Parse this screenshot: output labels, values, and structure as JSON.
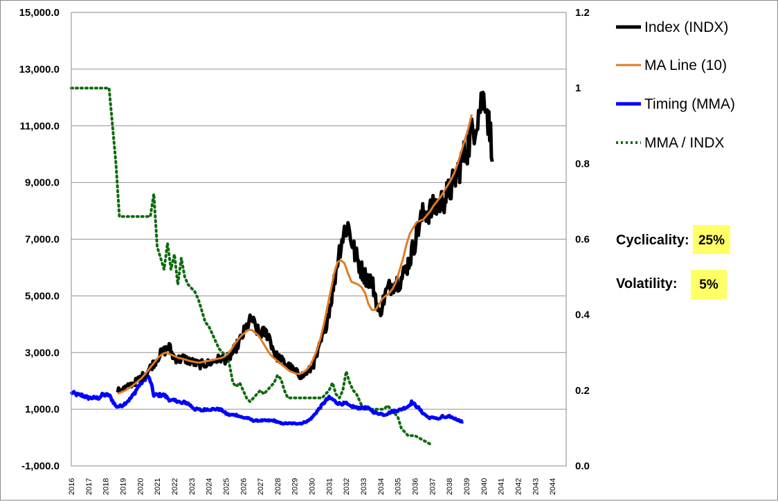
{
  "chart_data": {
    "type": "line",
    "x_axis": {
      "tick_labels": [
        "2016",
        "2017",
        "2018",
        "2019",
        "2020",
        "2021",
        "2022",
        "2023",
        "2024",
        "2025",
        "2026",
        "2027",
        "2028",
        "2029",
        "2030",
        "2031",
        "2032",
        "2033",
        "2034",
        "2035",
        "2036",
        "2037",
        "2038",
        "2039",
        "2040",
        "2041",
        "2042",
        "2043",
        "2044"
      ],
      "range": [
        2016,
        2044.8
      ]
    },
    "y_axis_left": {
      "range": [
        -1000,
        15000
      ],
      "tick_labels": [
        "-1,000.0",
        "1,000.0",
        "3,000.0",
        "5,000.0",
        "7,000.0",
        "9,000.0",
        "11,000.0",
        "13,000.0",
        "15,000.0"
      ],
      "gridlines": true
    },
    "y_axis_right": {
      "range": [
        0,
        1.2
      ],
      "tick_labels": [
        "0.0",
        "0.2",
        "0.4",
        "0.6",
        "0.8",
        "1",
        "1.2"
      ]
    },
    "legend": {
      "placement": "top-right",
      "entries": [
        {
          "label": "Index (INDX)",
          "color": "#000000",
          "style": "solid-thick"
        },
        {
          "label": "MA Line (10)",
          "color": "#E07B24",
          "style": "solid"
        },
        {
          "label": "Timing (MMA)",
          "color": "#0000FF",
          "style": "solid-thick"
        },
        {
          "label": "MMA / INDX",
          "color": "#0E6B0E",
          "style": "dotted"
        }
      ]
    },
    "series": [
      {
        "name": "Index (INDX)",
        "axis": "left",
        "color": "#000000",
        "width": 5,
        "start": 2018.7,
        "step": 0.2,
        "noise": 0.06,
        "noise_min": 80,
        "values": [
          1650,
          1700,
          1750,
          1800,
          1880,
          1950,
          2050,
          2150,
          2250,
          2400,
          2550,
          2700,
          2900,
          3000,
          3100,
          3200,
          2900,
          2800,
          2750,
          2800,
          2750,
          2700,
          2650,
          2600,
          2580,
          2600,
          2600,
          2650,
          2700,
          2750,
          2800,
          2750,
          2800,
          2900,
          3100,
          3300,
          3500,
          3800,
          4000,
          4200,
          3900,
          3700,
          3700,
          3700,
          3600,
          3200,
          2900,
          2800,
          2700,
          2600,
          2500,
          2400,
          2300,
          2200,
          2200,
          2300,
          2400,
          2600,
          2900,
          3300,
          3700,
          4200,
          4800,
          5500,
          6300,
          6900,
          7300,
          7500,
          7000,
          6500,
          6200,
          5900,
          5700,
          5600,
          5500,
          5000,
          4300,
          4700,
          5100,
          5300,
          5400,
          5500,
          5500,
          5700,
          6000,
          6300,
          6700,
          7200,
          7600,
          7900,
          8000,
          8000,
          8100,
          8200,
          8300,
          8400,
          8600,
          8800,
          9100,
          9400,
          9700,
          10000,
          10300,
          10700,
          11100,
          11500,
          11900,
          12100,
          11000,
          10300
        ]
      },
      {
        "name": "MA Line (10)",
        "axis": "left",
        "color": "#E07B24",
        "width": 3,
        "start": 2018.7,
        "step": 0.2,
        "values": [
          1550,
          1600,
          1650,
          1720,
          1800,
          1900,
          2000,
          2100,
          2250,
          2400,
          2550,
          2700,
          2850,
          2950,
          3000,
          2950,
          2900,
          2850,
          2800,
          2780,
          2740,
          2700,
          2680,
          2650,
          2650,
          2680,
          2700,
          2720,
          2750,
          2780,
          2800,
          2850,
          2950,
          3100,
          3300,
          3450,
          3600,
          3700,
          3800,
          3800,
          3700,
          3600,
          3400,
          3200,
          3000,
          2850,
          2750,
          2650,
          2550,
          2450,
          2350,
          2300,
          2250,
          2250,
          2300,
          2400,
          2550,
          2800,
          3100,
          3500,
          4000,
          4600,
          5200,
          5800,
          6200,
          6250,
          6150,
          5800,
          5500,
          5450,
          5400,
          5300,
          5100,
          4700,
          4500,
          4500,
          4700,
          4900,
          5000,
          5100,
          5250,
          5500,
          5900,
          6300,
          6800,
          7200,
          7400,
          7600,
          7650,
          7700,
          7850,
          8000,
          8200,
          8350,
          8500,
          8700,
          8900,
          9100,
          9350,
          9700,
          10100,
          10500,
          10900,
          11400
        ]
      },
      {
        "name": "Timing (MMA)",
        "axis": "left",
        "color": "#0000FF",
        "width": 5,
        "start": 2016,
        "step": 0.2,
        "noise": 0.04,
        "noise_min": 20,
        "values": [
          1600,
          1550,
          1500,
          1500,
          1450,
          1400,
          1400,
          1400,
          1400,
          1500,
          1500,
          1500,
          1300,
          1100,
          1100,
          1150,
          1250,
          1350,
          1500,
          1700,
          1900,
          2000,
          2200,
          2000,
          1500,
          1500,
          1500,
          1500,
          1400,
          1300,
          1300,
          1300,
          1200,
          1250,
          1200,
          1100,
          1000,
          1000,
          950,
          1000,
          1000,
          1000,
          1000,
          1000,
          950,
          850,
          800,
          800,
          800,
          750,
          700,
          700,
          650,
          600,
          600,
          600,
          600,
          600,
          600,
          600,
          550,
          500,
          500,
          500,
          500,
          500,
          500,
          500,
          550,
          600,
          700,
          850,
          1000,
          1150,
          1300,
          1400,
          1350,
          1250,
          1200,
          1200,
          1200,
          1100,
          1100,
          1050,
          1050,
          1050,
          1050,
          1000,
          900,
          850,
          850,
          800,
          850,
          900,
          950,
          950,
          1000,
          1050,
          1100,
          1250,
          1150,
          1050,
          900,
          800,
          700,
          700,
          700,
          650,
          750,
          700,
          750,
          700,
          650,
          600,
          550
        ]
      },
      {
        "name": "MMA / INDX",
        "axis": "right",
        "color": "#0E6B0E",
        "width": 4,
        "dotted": true,
        "start": 2016,
        "step": 0.2,
        "values": [
          1,
          1,
          1,
          1,
          1,
          1,
          1,
          1,
          1,
          1,
          1,
          1,
          0.9,
          0.8,
          0.66,
          0.66,
          0.66,
          0.66,
          0.66,
          0.66,
          0.66,
          0.66,
          0.66,
          0.66,
          0.72,
          0.58,
          0.55,
          0.52,
          0.59,
          0.52,
          0.56,
          0.48,
          0.55,
          0.5,
          0.48,
          0.47,
          0.46,
          0.44,
          0.41,
          0.38,
          0.37,
          0.35,
          0.33,
          0.31,
          0.3,
          0.29,
          0.27,
          0.22,
          0.21,
          0.22,
          0.2,
          0.18,
          0.17,
          0.18,
          0.19,
          0.2,
          0.19,
          0.2,
          0.21,
          0.22,
          0.24,
          0.23,
          0.2,
          0.18,
          0.18,
          0.18,
          0.18,
          0.18,
          0.18,
          0.18,
          0.18,
          0.18,
          0.18,
          0.18,
          0.19,
          0.2,
          0.22,
          0.19,
          0.18,
          0.2,
          0.25,
          0.22,
          0.2,
          0.19,
          0.17,
          0.15,
          0.15,
          0.15,
          0.15,
          0.15,
          0.15,
          0.15,
          0.16,
          0.15,
          0.14,
          0.13,
          0.1,
          0.09,
          0.08,
          0.08,
          0.08,
          0.075,
          0.07,
          0.065,
          0.06,
          0.055
        ]
      }
    ]
  },
  "metrics": {
    "cyclicality": {
      "label": "Cyclicality:",
      "value": "25%"
    },
    "volatility": {
      "label": "Volatility:",
      "value": "5%"
    }
  },
  "colors": {
    "gridline": "#909090",
    "metric_highlight": "#FFFF66"
  }
}
